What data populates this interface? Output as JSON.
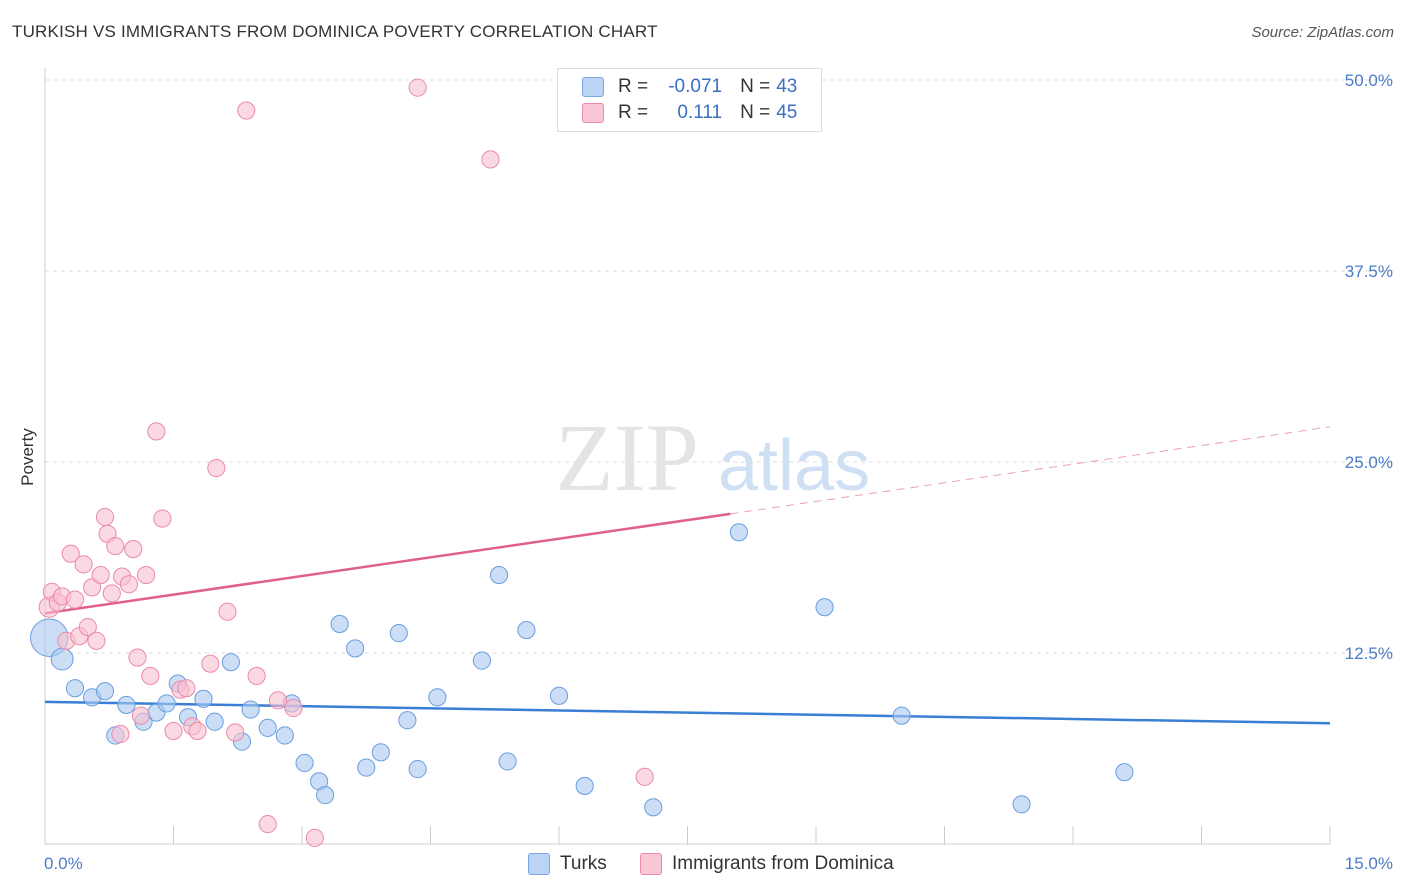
{
  "title": "TURKISH VS IMMIGRANTS FROM DOMINICA POVERTY CORRELATION CHART",
  "source": "Source: ZipAtlas.com",
  "watermark": {
    "zip": "ZIP",
    "atlas": "atlas"
  },
  "legend": {
    "rows": [
      {
        "r_label": "R =",
        "r_value": "-0.071",
        "n_label": "N =",
        "n_value": "43"
      },
      {
        "r_label": "R =",
        "r_value": "0.111",
        "n_label": "N =",
        "n_value": "45"
      }
    ]
  },
  "chart_data": {
    "type": "scatter",
    "title": "TURKISH VS IMMIGRANTS FROM DOMINICA POVERTY CORRELATION CHART",
    "xlabel": "",
    "ylabel": "Poverty",
    "xlim": [
      0,
      15
    ],
    "ylim": [
      0,
      50
    ],
    "x_tick_labels": [
      "0.0%",
      "15.0%"
    ],
    "y_ticks": [
      12.5,
      25.0,
      37.5,
      50.0
    ],
    "y_tick_labels": [
      "12.5%",
      "25.0%",
      "37.5%",
      "50.0%"
    ],
    "grid": true,
    "legend_position": "top-center",
    "series": [
      {
        "name": "Turks",
        "color": "#a8c8f0",
        "stroke": "#6a9ee0",
        "line_color": "#3a7fd4",
        "r": -0.071,
        "n": 43,
        "trend": {
          "x": [
            0,
            15
          ],
          "y": [
            9.3,
            7.9
          ],
          "dashed_from": null
        },
        "points": [
          [
            0.05,
            13.5,
            24
          ],
          [
            0.2,
            12.1,
            14
          ],
          [
            0.35,
            10.2,
            11
          ],
          [
            0.55,
            9.6,
            11
          ],
          [
            0.7,
            10.0,
            11
          ],
          [
            0.82,
            7.1,
            11
          ],
          [
            0.95,
            9.1,
            11
          ],
          [
            1.15,
            8.0,
            11
          ],
          [
            1.3,
            8.6,
            11
          ],
          [
            1.42,
            9.2,
            11
          ],
          [
            1.55,
            10.5,
            11
          ],
          [
            1.67,
            8.3,
            11
          ],
          [
            1.85,
            9.5,
            11
          ],
          [
            1.98,
            8.0,
            11
          ],
          [
            2.17,
            11.9,
            11
          ],
          [
            2.3,
            6.7,
            11
          ],
          [
            2.4,
            8.8,
            11
          ],
          [
            2.6,
            7.6,
            11
          ],
          [
            2.8,
            7.1,
            11
          ],
          [
            2.88,
            9.2,
            11
          ],
          [
            3.03,
            5.3,
            11
          ],
          [
            3.2,
            4.1,
            11
          ],
          [
            3.27,
            3.2,
            11
          ],
          [
            3.44,
            14.4,
            11
          ],
          [
            3.62,
            12.8,
            11
          ],
          [
            3.75,
            5.0,
            11
          ],
          [
            3.92,
            6.0,
            11
          ],
          [
            4.13,
            13.8,
            11
          ],
          [
            4.23,
            8.1,
            11
          ],
          [
            4.35,
            4.9,
            11
          ],
          [
            4.58,
            9.6,
            11
          ],
          [
            5.1,
            12.0,
            11
          ],
          [
            5.3,
            17.6,
            11
          ],
          [
            5.4,
            5.4,
            11
          ],
          [
            5.62,
            14.0,
            11
          ],
          [
            6.0,
            9.7,
            11
          ],
          [
            6.3,
            3.8,
            11
          ],
          [
            7.1,
            2.4,
            11
          ],
          [
            8.1,
            20.4,
            11
          ],
          [
            9.1,
            15.5,
            11
          ],
          [
            10.0,
            8.4,
            11
          ],
          [
            11.4,
            2.6,
            11
          ],
          [
            12.6,
            4.7,
            11
          ]
        ]
      },
      {
        "name": "Immigrants from Dominica",
        "color": "#f8c0d0",
        "stroke": "#ec8aa8",
        "line_color": "#e05f8c",
        "r": 0.111,
        "n": 45,
        "trend": {
          "x": [
            0,
            15
          ],
          "y": [
            15.1,
            27.3
          ],
          "dashed_from": 8.0
        },
        "points": [
          [
            0.05,
            15.5,
            13
          ],
          [
            0.08,
            16.5,
            11
          ],
          [
            0.15,
            15.8,
            11
          ],
          [
            0.2,
            16.2,
            11
          ],
          [
            0.25,
            13.3,
            11
          ],
          [
            0.3,
            19.0,
            11
          ],
          [
            0.35,
            16.0,
            11
          ],
          [
            0.4,
            13.6,
            11
          ],
          [
            0.45,
            18.3,
            11
          ],
          [
            0.5,
            14.2,
            11
          ],
          [
            0.55,
            16.8,
            11
          ],
          [
            0.6,
            13.3,
            11
          ],
          [
            0.65,
            17.6,
            11
          ],
          [
            0.7,
            21.4,
            11
          ],
          [
            0.73,
            20.3,
            11
          ],
          [
            0.78,
            16.4,
            11
          ],
          [
            0.82,
            19.5,
            11
          ],
          [
            0.9,
            17.5,
            11
          ],
          [
            0.98,
            17.0,
            11
          ],
          [
            1.03,
            19.3,
            11
          ],
          [
            1.08,
            12.2,
            11
          ],
          [
            1.12,
            8.4,
            11
          ],
          [
            1.18,
            17.6,
            11
          ],
          [
            1.23,
            11.0,
            11
          ],
          [
            1.3,
            27.0,
            11
          ],
          [
            1.37,
            21.3,
            11
          ],
          [
            0.88,
            7.2,
            11
          ],
          [
            1.5,
            7.4,
            11
          ],
          [
            1.58,
            10.1,
            11
          ],
          [
            1.65,
            10.2,
            11
          ],
          [
            1.72,
            7.7,
            11
          ],
          [
            1.78,
            7.4,
            11
          ],
          [
            1.93,
            11.8,
            11
          ],
          [
            2.0,
            24.6,
            11
          ],
          [
            2.13,
            15.2,
            11
          ],
          [
            2.22,
            7.3,
            11
          ],
          [
            2.35,
            48.0,
            11
          ],
          [
            2.47,
            11.0,
            11
          ],
          [
            2.6,
            1.3,
            11
          ],
          [
            2.72,
            9.4,
            11
          ],
          [
            2.9,
            8.9,
            11
          ],
          [
            3.15,
            0.4,
            11
          ],
          [
            4.35,
            49.5,
            11
          ],
          [
            5.2,
            44.8,
            11
          ],
          [
            7.0,
            4.4,
            11
          ]
        ]
      }
    ]
  },
  "bottom_legend": [
    {
      "label": "Turks"
    },
    {
      "label": "Immigrants from Dominica"
    }
  ]
}
